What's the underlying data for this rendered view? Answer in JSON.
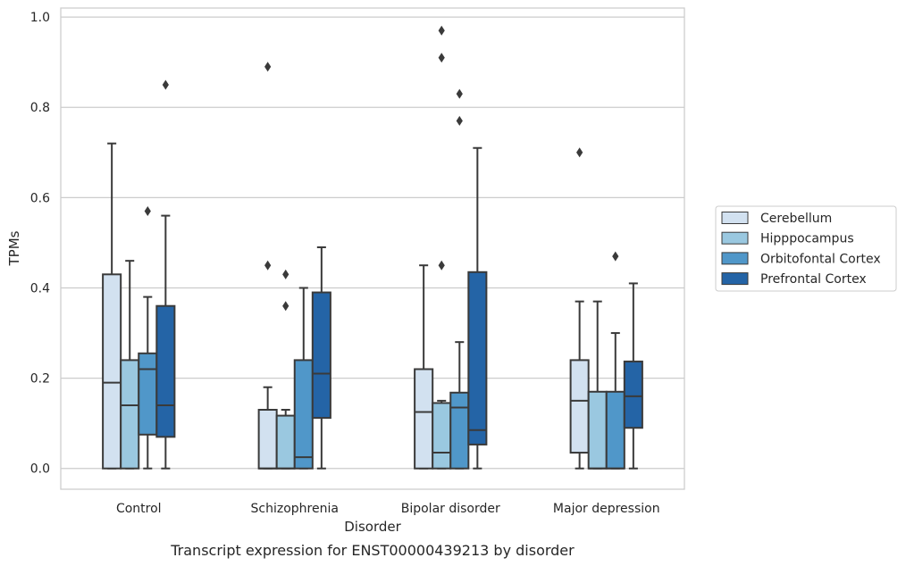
{
  "chart_data": {
    "type": "boxplot",
    "title": "",
    "xlabel": "Disorder",
    "ylabel": "TPMs",
    "caption": "Transcript expression for ENST00000439213 by disorder",
    "ylim": [
      -0.046,
      1.02
    ],
    "yticks": [
      0.0,
      0.2,
      0.4,
      0.6,
      0.8,
      1.0
    ],
    "ytick_labels": [
      "0.0",
      "0.2",
      "0.4",
      "0.6",
      "0.8",
      "1.0"
    ],
    "grid": "horizontal",
    "legend_position": "right",
    "categories": [
      "Control",
      "Schizophrenia",
      "Bipolar disorder",
      "Major depression"
    ],
    "series": [
      {
        "name": "Cerebellum",
        "color": "#d2e1f0",
        "boxes": [
          {
            "whislo": 0.0,
            "q1": 0.0,
            "med": 0.19,
            "q3": 0.43,
            "whishi": 0.72,
            "fliers": []
          },
          {
            "whislo": 0.0,
            "q1": 0.0,
            "med": 0.0,
            "q3": 0.13,
            "whishi": 0.18,
            "fliers": [
              0.45,
              0.89
            ]
          },
          {
            "whislo": 0.0,
            "q1": 0.0,
            "med": 0.125,
            "q3": 0.22,
            "whishi": 0.45,
            "fliers": []
          },
          {
            "whislo": 0.0,
            "q1": 0.035,
            "med": 0.15,
            "q3": 0.24,
            "whishi": 0.37,
            "fliers": [
              0.7
            ]
          }
        ]
      },
      {
        "name": "Hipppocampus",
        "color": "#9ac8e0",
        "boxes": [
          {
            "whislo": 0.0,
            "q1": 0.0,
            "med": 0.14,
            "q3": 0.24,
            "whishi": 0.46,
            "fliers": []
          },
          {
            "whislo": 0.0,
            "q1": 0.0,
            "med": 0.0,
            "q3": 0.117,
            "whishi": 0.13,
            "fliers": [
              0.36,
              0.43
            ]
          },
          {
            "whislo": 0.0,
            "q1": 0.0,
            "med": 0.035,
            "q3": 0.145,
            "whishi": 0.15,
            "fliers": [
              0.45,
              0.91,
              0.97
            ]
          },
          {
            "whislo": 0.0,
            "q1": 0.0,
            "med": 0.0,
            "q3": 0.17,
            "whishi": 0.37,
            "fliers": []
          }
        ]
      },
      {
        "name": "Orbitofontal Cortex",
        "color": "#5097c9",
        "boxes": [
          {
            "whislo": 0.0,
            "q1": 0.075,
            "med": 0.22,
            "q3": 0.255,
            "whishi": 0.38,
            "fliers": [
              0.57
            ]
          },
          {
            "whislo": 0.0,
            "q1": 0.0,
            "med": 0.025,
            "q3": 0.24,
            "whishi": 0.4,
            "fliers": []
          },
          {
            "whislo": 0.0,
            "q1": 0.0,
            "med": 0.135,
            "q3": 0.168,
            "whishi": 0.28,
            "fliers": [
              0.77,
              0.83
            ]
          },
          {
            "whislo": 0.0,
            "q1": 0.0,
            "med": 0.0,
            "q3": 0.17,
            "whishi": 0.3,
            "fliers": [
              0.47
            ]
          }
        ]
      },
      {
        "name": "Prefrontal Cortex",
        "color": "#2464a6",
        "boxes": [
          {
            "whislo": 0.0,
            "q1": 0.07,
            "med": 0.14,
            "q3": 0.36,
            "whishi": 0.56,
            "fliers": [
              0.85
            ]
          },
          {
            "whislo": 0.0,
            "q1": 0.112,
            "med": 0.21,
            "q3": 0.39,
            "whishi": 0.49,
            "fliers": []
          },
          {
            "whislo": 0.0,
            "q1": 0.053,
            "med": 0.085,
            "q3": 0.435,
            "whishi": 0.71,
            "fliers": []
          },
          {
            "whislo": 0.0,
            "q1": 0.09,
            "med": 0.16,
            "q3": 0.237,
            "whishi": 0.41,
            "fliers": []
          }
        ]
      }
    ]
  }
}
